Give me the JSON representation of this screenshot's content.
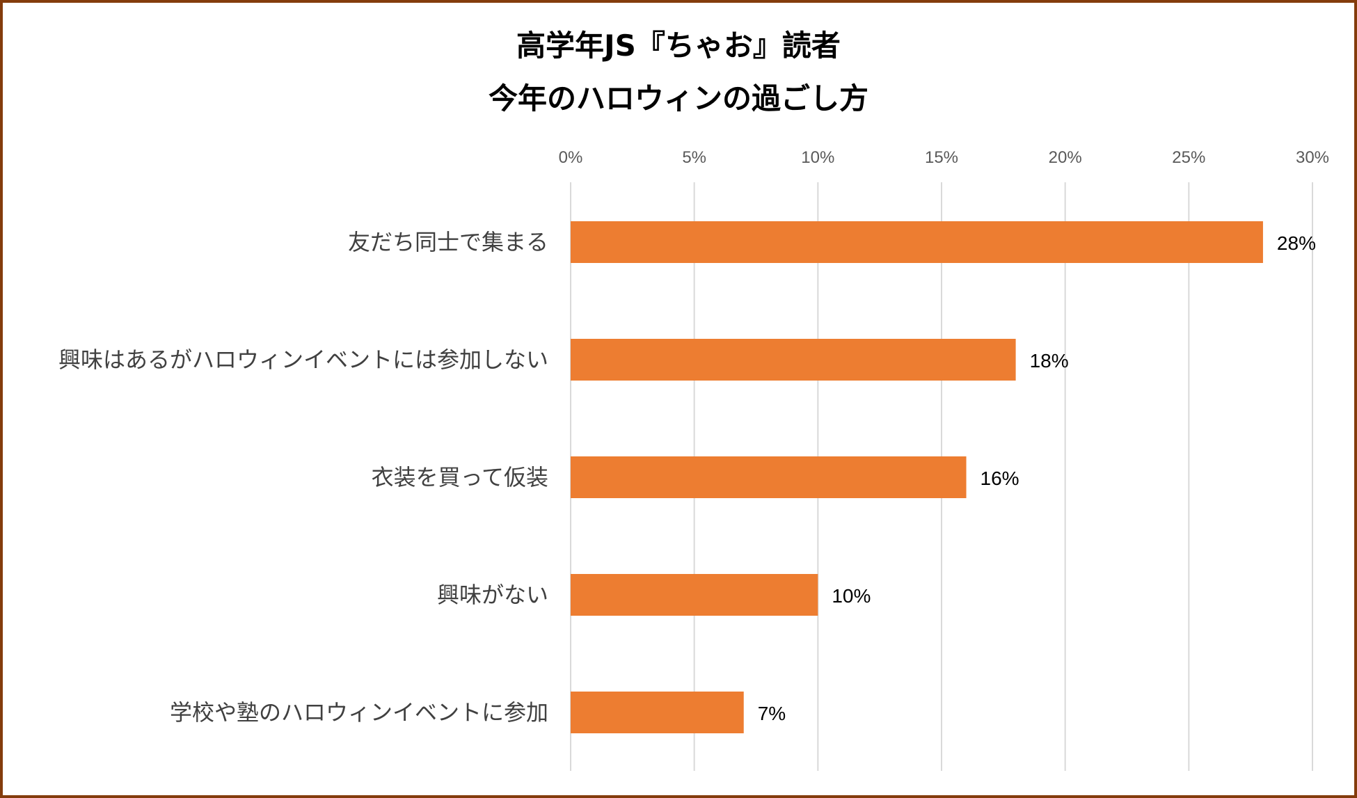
{
  "chart_data": {
    "type": "bar",
    "orientation": "horizontal",
    "title": [
      "高学年JS『ちゃお』読者",
      "今年のハロウィンの過ごし方"
    ],
    "categories": [
      "友だち同士で集まる",
      "興味はあるがハロウィンイベントには参加しない",
      "衣装を買って仮装",
      "興味がない",
      "学校や塾のハロウィンイベントに参加"
    ],
    "values": [
      28,
      18,
      16,
      10,
      7
    ],
    "value_labels": [
      "28%",
      "18%",
      "16%",
      "10%",
      "7%"
    ],
    "xlim": [
      0,
      30
    ],
    "x_ticks": [
      0,
      5,
      10,
      15,
      20,
      25,
      30
    ],
    "x_tick_labels": [
      "0%",
      "5%",
      "10%",
      "15%",
      "20%",
      "25%",
      "30%"
    ],
    "x_axis_position": "top",
    "grid": true,
    "legend": "none",
    "colors": {
      "bar": "#ed7d31",
      "grid": "#d9d9d9",
      "border": "#843c0c"
    }
  }
}
